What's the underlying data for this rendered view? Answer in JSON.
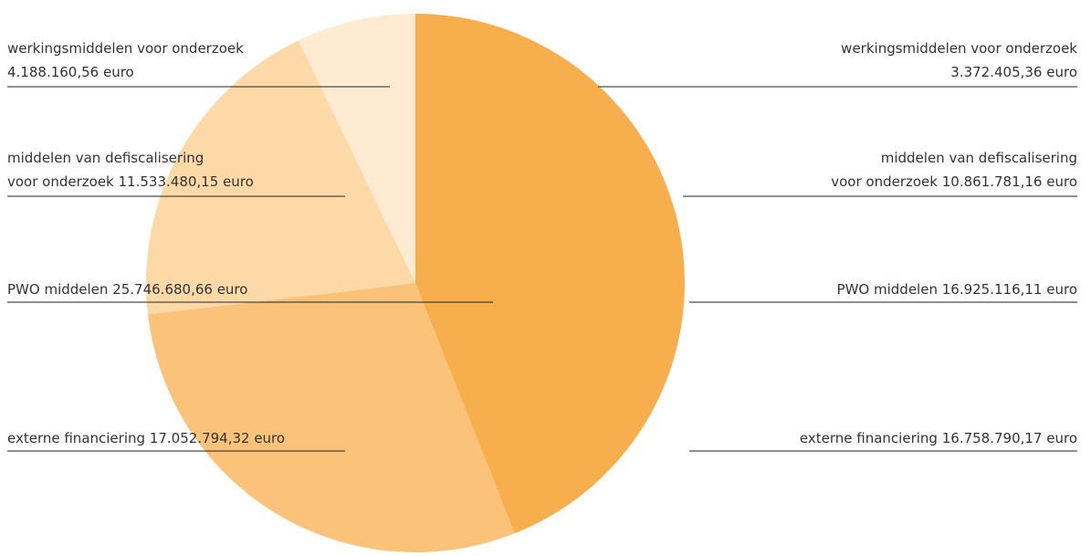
{
  "chart_data": {
    "type": "pie",
    "categories": [
      [
        "werkingsmiddelen voor onderzoek"
      ],
      [
        "middelen van defiscalisering",
        "voor onderzoek"
      ],
      [
        "PWO middelen"
      ],
      [
        "externe financiering"
      ]
    ],
    "colors": [
      "#feebd1",
      "#fdd9a8",
      "#f7ae4c",
      "#fbc37a"
    ],
    "series": [
      {
        "values": [
          4188160.56,
          11533480.15,
          25746680.66,
          17052794.32
        ],
        "value_labels": [
          "4.188.160,56 euro",
          "11.533.480,15 euro",
          "25.746.680,66 euro",
          "17.052.794,32 euro"
        ]
      },
      {
        "values": [
          3372405.36,
          10861781.16,
          16925116.11,
          16758790.17
        ],
        "value_labels": [
          "3.372.405,36 euro",
          "10.861.781,16 euro",
          "16.925.116,11 euro",
          "16.758.790,17 euro"
        ]
      }
    ]
  }
}
